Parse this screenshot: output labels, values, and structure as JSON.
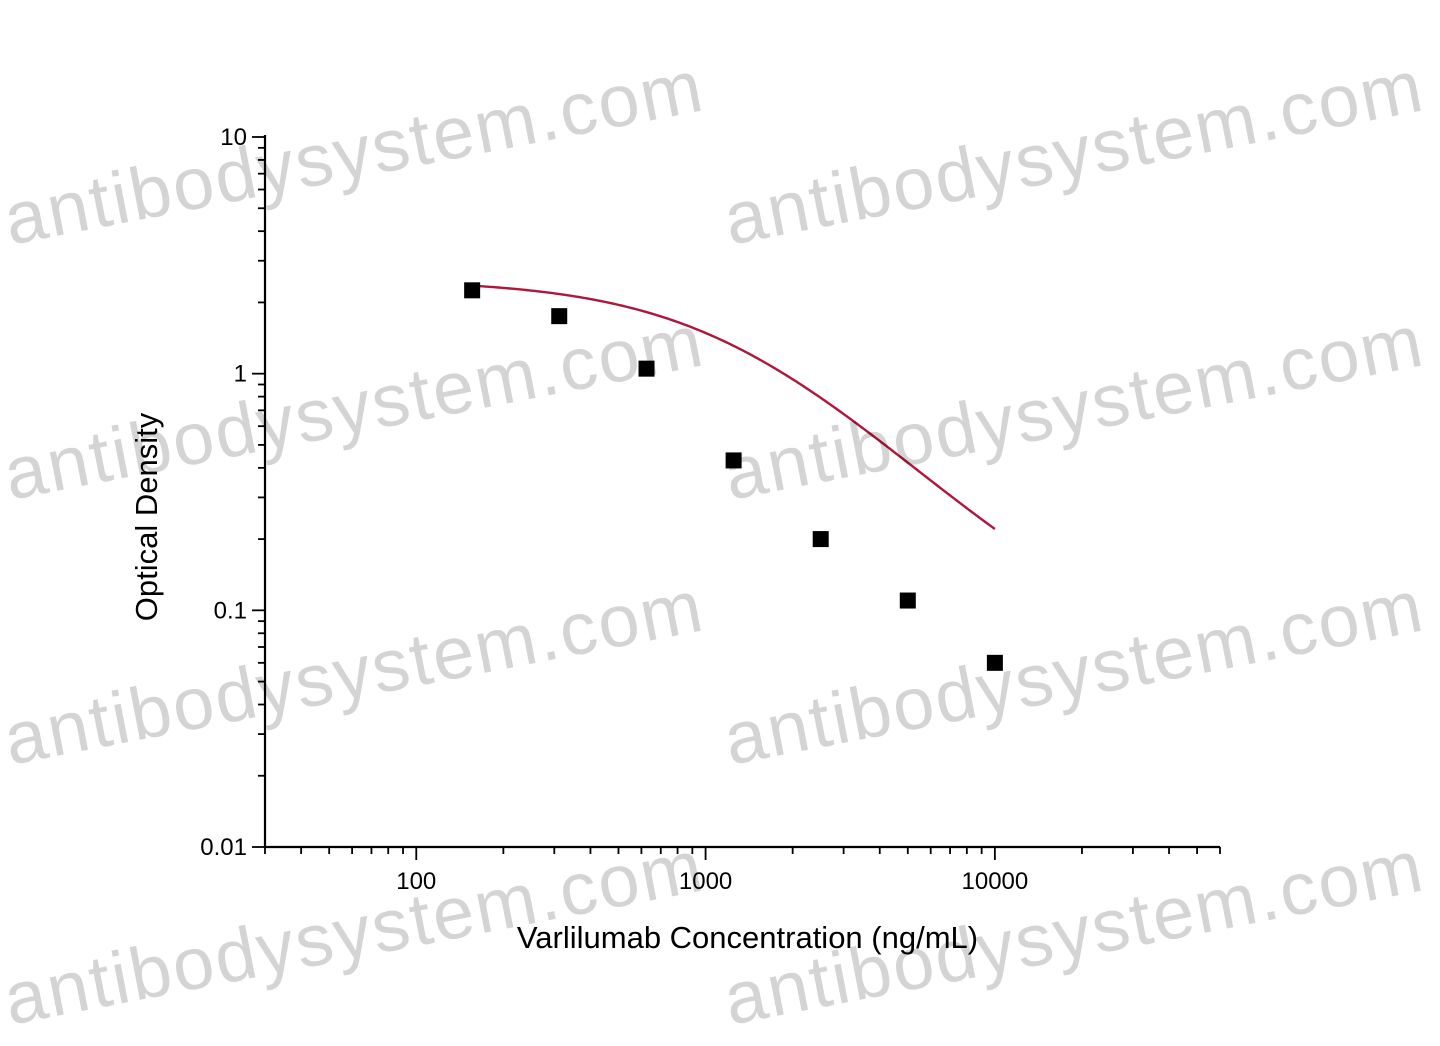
{
  "watermark_text": "antibodysystem.com",
  "chart_data": {
    "type": "scatter",
    "title": "",
    "xlabel": "Varlilumab Concentration (ng/mL)",
    "ylabel": "Optical Density",
    "xscale": "log",
    "yscale": "log",
    "xlim": [
      30,
      60000
    ],
    "ylim": [
      0.01,
      10
    ],
    "x_ticks": [
      100,
      1000,
      10000
    ],
    "x_tick_labels": [
      "100",
      "1000",
      "10000"
    ],
    "y_ticks": [
      0.01,
      0.1,
      1,
      10
    ],
    "y_tick_labels": [
      "0.01",
      "0.1",
      "1",
      "10"
    ],
    "grid": false,
    "legend": "none",
    "series": [
      {
        "x": [
          156,
          312,
          625,
          1250,
          2500,
          5000,
          10000
        ],
        "y": [
          2.25,
          1.75,
          1.05,
          0.43,
          0.2,
          0.11,
          0.06
        ]
      }
    ],
    "fit": {
      "type": "4PL",
      "top": 2.5,
      "bottom": 0.06,
      "ec50": 1300,
      "hill": 1.3,
      "x_range": [
        156,
        10000
      ]
    },
    "marker_color": "#000000",
    "curve_color": "#b0153c"
  }
}
